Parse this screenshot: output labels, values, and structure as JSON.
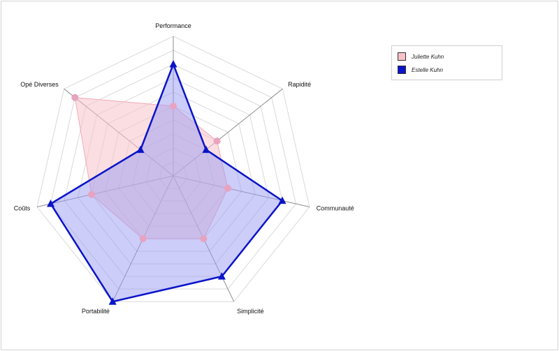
{
  "chart_data": {
    "type": "radar",
    "axes": [
      "Performance",
      "Rapidité",
      "Communauté",
      "Simplicité",
      "Portabilité",
      "Coûts",
      "Opé Diverses"
    ],
    "range": [
      0,
      10
    ],
    "rings": 10,
    "grid": true,
    "legend_position": "top-right",
    "series": [
      {
        "name": "Juliette Kuhn",
        "values": [
          5,
          4,
          4,
          5,
          5,
          6,
          9
        ],
        "fill": "#f8c3c8",
        "stroke": "#f4a8b8",
        "marker_color": "#e8a3c0",
        "marker": "circle"
      },
      {
        "name": "Estelle Kuhn",
        "values": [
          8,
          3,
          8,
          8,
          10,
          9,
          3
        ],
        "fill": "#9a9cf4",
        "stroke": "#0a14c8",
        "marker_color": "#0a14c8",
        "marker": "triangle"
      }
    ]
  }
}
